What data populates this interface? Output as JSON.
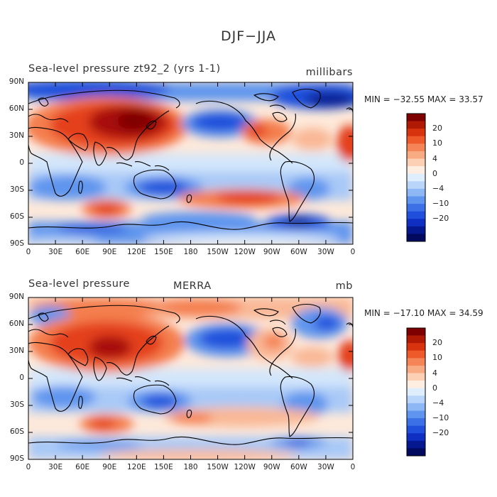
{
  "title": "DJF−JJA",
  "panels": [
    {
      "id": "top",
      "left_title": "Sea-level pressure  zt92_2 (yrs 1-1)",
      "center_title": "",
      "units": "millibars",
      "min_label": "MIN = ",
      "min_value": "−32.55",
      "max_label": "MAX = ",
      "max_value": "33.57"
    },
    {
      "id": "bottom",
      "left_title": "Sea-level pressure",
      "center_title": "MERRA",
      "units": "mb",
      "min_label": "MIN = ",
      "min_value": "−17.10",
      "max_label": "MAX = ",
      "max_value": "34.59"
    }
  ],
  "lon_ticks": [
    "0",
    "30E",
    "60E",
    "90E",
    "120E",
    "150E",
    "180",
    "150W",
    "120W",
    "90W",
    "60W",
    "30W",
    "0"
  ],
  "lat_ticks": [
    "90N",
    "60N",
    "30N",
    "0",
    "30S",
    "60S",
    "90S"
  ],
  "colorbar": {
    "labels": [
      "20",
      "10",
      "4",
      "0",
      "−4",
      "−10",
      "−20"
    ],
    "colors": [
      "#7f0000",
      "#b01a05",
      "#d8330f",
      "#ee5a2a",
      "#f58456",
      "#f8aa82",
      "#fbd0b4",
      "#fdeee1",
      "#deeefd",
      "#b9d6fa",
      "#8eb8f5",
      "#5f95ee",
      "#3c70e6",
      "#1f4fdb",
      "#0f2fc2",
      "#061890",
      "#010a5e"
    ]
  },
  "palette": {
    "deep_red": "#a80f0a",
    "red": "#e4401a",
    "orange": "#f47e4e",
    "salmon": "#f9b896",
    "pale": "#fde9da",
    "lightblue": "#d3e6fb",
    "skyblue": "#a9c9f7",
    "blue": "#5f95ee",
    "darkblue": "#1f4fdb",
    "navy": "#0b1a8f"
  }
}
